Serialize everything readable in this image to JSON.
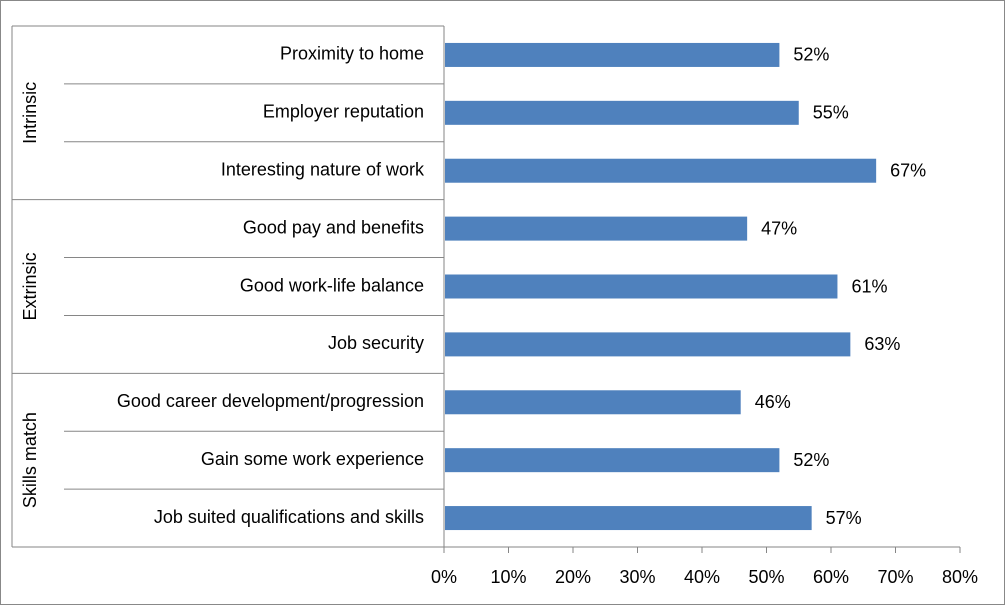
{
  "chart_data": {
    "type": "bar",
    "orientation": "horizontal",
    "groups": [
      {
        "label": "Intrinsic",
        "categories": [
          "Proximity to home",
          "Employer reputation",
          "Interesting nature of work"
        ]
      },
      {
        "label": "Extrinsic",
        "categories": [
          "Good pay and benefits",
          "Good work-life balance",
          "Job security"
        ]
      },
      {
        "label": "Skills match",
        "categories": [
          "Good career development/progression",
          "Gain some work experience",
          "Job suited qualifications and skills"
        ]
      }
    ],
    "categories": [
      "Proximity to home",
      "Employer reputation",
      "Interesting nature of work",
      "Good pay and benefits",
      "Good work-life balance",
      "Job security",
      "Good career development/progression",
      "Gain some work experience",
      "Job suited qualifications and skills"
    ],
    "values": [
      52,
      55,
      67,
      47,
      61,
      63,
      46,
      52,
      57
    ],
    "data_labels": [
      "52%",
      "55%",
      "67%",
      "47%",
      "61%",
      "63%",
      "46%",
      "52%",
      "57%"
    ],
    "xlim": [
      0,
      80
    ],
    "xticks": [
      0,
      10,
      20,
      30,
      40,
      50,
      60,
      70,
      80
    ],
    "xtick_labels": [
      "0%",
      "10%",
      "20%",
      "30%",
      "40%",
      "50%",
      "60%",
      "70%",
      "80%"
    ],
    "grid": false,
    "legend": "none",
    "bar_color": "#4F81BD"
  }
}
